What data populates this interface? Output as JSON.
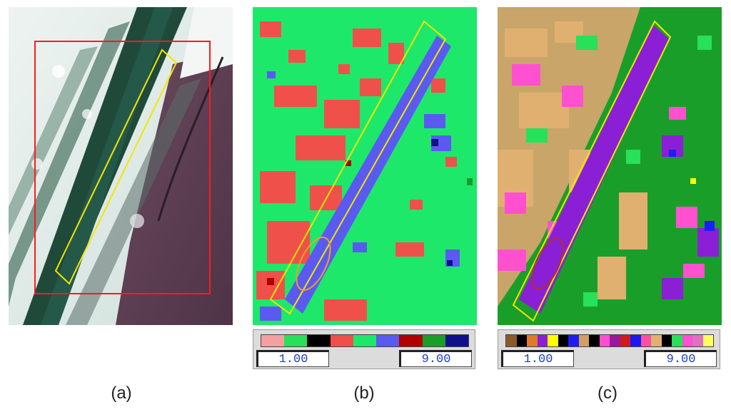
{
  "captions": {
    "a": "(a)",
    "b": "(b)",
    "c": "(c)"
  },
  "legend_b": {
    "min_label": "1.00",
    "max_label": "9.00",
    "colors": [
      "#f4a0a0",
      "#28e05a",
      "#000000",
      "#f0504a",
      "#1ee86a",
      "#5a5af0",
      "#b00000",
      "#1a9e2a",
      "#10108c"
    ]
  },
  "legend_c": {
    "min_label": "1.00",
    "max_label": "9.00",
    "colors": [
      "#8b5a2b",
      "#000000",
      "#e07a2a",
      "#8a1fd6",
      "#ffff00",
      "#000000",
      "#1e1ef0",
      "#d4a060",
      "#000000",
      "#ff50d0",
      "#9a1a9a",
      "#d01a1a",
      "#1a1af0",
      "#ff50a0",
      "#e0b070",
      "#000000",
      "#28e05a",
      "#ff50d0",
      "#e070c0",
      "#ffff60"
    ]
  },
  "colors": {
    "outline_red": "#ff1a1a",
    "outline_yellow": "#f2e600",
    "outline_orange": "#f0a020"
  }
}
